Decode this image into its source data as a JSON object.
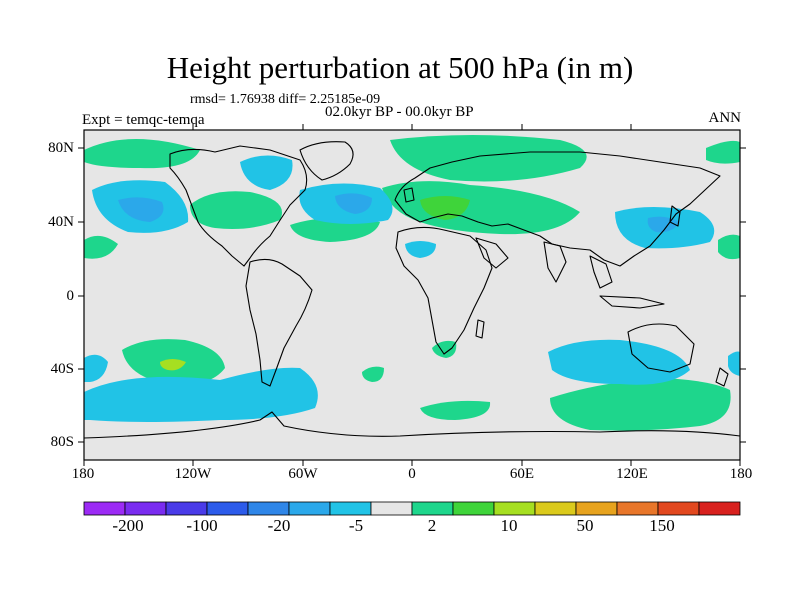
{
  "title": "Height perturbation at 500 hPa (in m)",
  "stats": "rmsd= 1.76938 diff= 2.25185e-09",
  "period": "02.0kyr BP - 00.0kyr BP",
  "experiment": "Expt = temqc-temqa",
  "season": "ANN",
  "lat_ticks": [
    "80N",
    "40N",
    "0",
    "40S",
    "80S"
  ],
  "lon_ticks": [
    "180",
    "120W",
    "60W",
    "0",
    "60E",
    "120E",
    "180"
  ],
  "colorbar": {
    "colors": [
      "#9c2bf5",
      "#7a2cf0",
      "#4a3be8",
      "#2c5bea",
      "#2f86e8",
      "#2ba8ea",
      "#21c3e6",
      "#e6e6e6",
      "#1ed68c",
      "#3fd43a",
      "#a6df21",
      "#dbca1c",
      "#e7a31e",
      "#e8762a",
      "#e2481f",
      "#d8211e"
    ],
    "labels": [
      "-200",
      "-100",
      "-20",
      "-5",
      "2",
      "10",
      "50",
      "150"
    ]
  }
}
